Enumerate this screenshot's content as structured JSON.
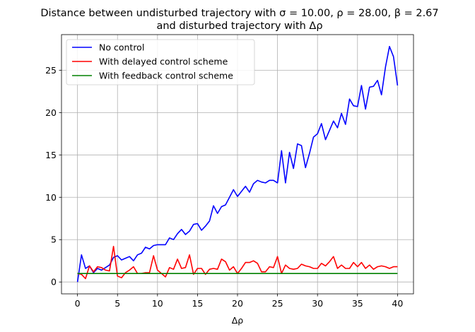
{
  "chart_data": {
    "type": "line",
    "title_line1": "Distance between undisturbed trajectory with σ = 10.00, ρ = 28.00, β = 2.67",
    "title_line2": "and disturbed trajectory with Δρ",
    "xlabel": "Δρ",
    "ylabel": "",
    "xlim": [
      -2,
      42
    ],
    "ylim": [
      -1.4,
      29.2
    ],
    "xticks": [
      0,
      5,
      10,
      15,
      20,
      25,
      30,
      35,
      40
    ],
    "yticks": [
      0,
      5,
      10,
      15,
      20,
      25
    ],
    "grid": true,
    "legend_position": "top-left",
    "x": [
      0,
      0.5,
      1,
      1.5,
      2,
      2.5,
      3,
      3.5,
      4,
      4.5,
      5,
      5.5,
      6,
      6.5,
      7,
      7.5,
      8,
      8.5,
      9,
      9.5,
      10,
      10.5,
      11,
      11.5,
      12,
      12.5,
      13,
      13.5,
      14,
      14.5,
      15,
      15.5,
      16,
      16.5,
      17,
      17.5,
      18,
      18.5,
      19,
      19.5,
      20,
      20.5,
      21,
      21.5,
      22,
      22.5,
      23,
      23.5,
      24,
      24.5,
      25,
      25.5,
      26,
      26.5,
      27,
      27.5,
      28,
      28.5,
      29,
      29.5,
      30,
      30.5,
      31,
      31.5,
      32,
      32.5,
      33,
      33.5,
      34,
      34.5,
      35,
      35.5,
      36,
      36.5,
      37,
      37.5,
      38,
      38.5,
      39,
      39.5,
      40
    ],
    "series": [
      {
        "name": "No control",
        "color": "#0000ff",
        "values": [
          0,
          3.2,
          1.6,
          1.9,
          1.1,
          1.6,
          1.4,
          1.7,
          2.0,
          2.9,
          3.1,
          2.6,
          2.8,
          3.0,
          2.5,
          3.2,
          3.4,
          4.1,
          3.9,
          4.3,
          4.4,
          4.4,
          4.4,
          5.2,
          5.0,
          5.7,
          6.2,
          5.6,
          6.0,
          6.8,
          6.9,
          6.1,
          6.6,
          7.2,
          9.0,
          8.1,
          8.9,
          9.1,
          10.0,
          10.9,
          10.1,
          10.7,
          11.3,
          10.6,
          11.6,
          12.0,
          11.8,
          11.7,
          12.0,
          12.0,
          11.7,
          15.5,
          11.7,
          15.3,
          13.4,
          16.3,
          16.1,
          13.5,
          15.2,
          17.1,
          17.5,
          18.7,
          16.8,
          17.9,
          19.0,
          18.2,
          19.9,
          18.6,
          21.6,
          20.8,
          20.7,
          23.2,
          20.4,
          23.0,
          23.1,
          23.8,
          22.1,
          25.4,
          27.8,
          26.6,
          23.2
        ]
      },
      {
        "name": "With delayed control scheme",
        "color": "#ff0000",
        "values": [
          1.0,
          0.9,
          0.4,
          1.9,
          1.2,
          1.8,
          1.7,
          1.4,
          1.3,
          4.2,
          0.7,
          0.5,
          1.1,
          1.4,
          1.8,
          1.0,
          1.0,
          1.1,
          1.1,
          3.1,
          1.4,
          1.0,
          0.6,
          1.7,
          1.5,
          2.7,
          1.6,
          1.7,
          3.2,
          0.9,
          1.6,
          1.6,
          0.9,
          1.5,
          1.6,
          1.5,
          2.7,
          2.4,
          1.4,
          1.8,
          1.0,
          1.6,
          2.3,
          2.3,
          2.5,
          2.2,
          1.2,
          1.2,
          1.8,
          1.7,
          3.0,
          1.0,
          2.0,
          1.6,
          1.5,
          1.6,
          2.1,
          1.9,
          1.8,
          1.6,
          1.6,
          2.2,
          1.9,
          2.4,
          3.0,
          1.6,
          2.0,
          1.6,
          1.6,
          2.3,
          1.8,
          2.3,
          1.6,
          2.0,
          1.5,
          1.8,
          1.9,
          1.8,
          1.6,
          1.8,
          1.8
        ]
      },
      {
        "name": "With feedback control scheme",
        "color": "#008000",
        "values": [
          1.0,
          1.0,
          1.0,
          1.0,
          1.0,
          1.0,
          1.0,
          1.0,
          1.0,
          1.0,
          1.0,
          1.0,
          1.0,
          1.0,
          1.0,
          1.0,
          1.0,
          1.0,
          1.0,
          1.0,
          1.0,
          1.0,
          1.0,
          1.0,
          1.0,
          1.0,
          1.0,
          1.0,
          1.0,
          1.0,
          1.0,
          1.0,
          1.0,
          1.0,
          1.0,
          1.0,
          1.0,
          1.0,
          1.0,
          1.0,
          1.0,
          1.0,
          1.0,
          1.0,
          1.0,
          1.0,
          1.0,
          1.0,
          1.0,
          1.0,
          1.0,
          1.0,
          1.0,
          1.0,
          1.0,
          1.0,
          1.0,
          1.0,
          1.0,
          1.0,
          1.0,
          1.0,
          1.0,
          1.0,
          1.0,
          1.0,
          1.0,
          1.0,
          1.0,
          1.0,
          1.0,
          1.0,
          1.0,
          1.0,
          1.0,
          1.0,
          1.0,
          1.0,
          1.0,
          1.0,
          1.0
        ]
      }
    ]
  }
}
